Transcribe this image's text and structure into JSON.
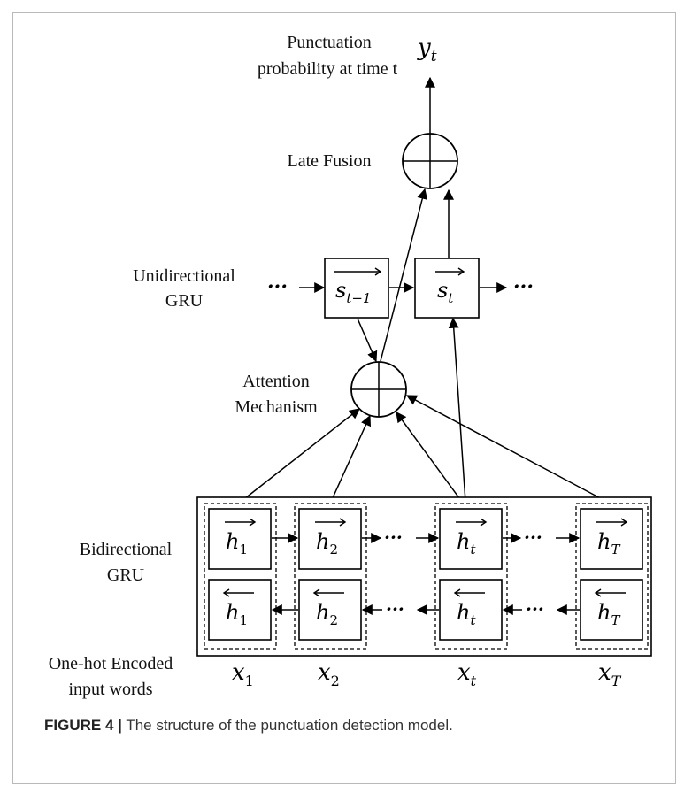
{
  "labels": {
    "output_title_line1": "Punctuation",
    "output_title_line2": "probability at time t",
    "late_fusion": "Late Fusion",
    "unidirectional_line1": "Unidirectional",
    "unidirectional_line2": "GRU",
    "attention_line1": "Attention",
    "attention_line2": "Mechanism",
    "bidirectional_line1": "Bidirectional",
    "bidirectional_line2": "GRU",
    "input_line1": "One-hot Encoded",
    "input_line2": "input words"
  },
  "math": {
    "y": "y",
    "y_sub": "t",
    "s_prev": "s",
    "s_prev_sub": "t−1",
    "s_cur": "s",
    "s_cur_sub": "t",
    "h": "h",
    "sub_1": "1",
    "sub_2": "2",
    "sub_t": "t",
    "sub_T": "T",
    "x": "x",
    "ellipsis": "···"
  },
  "caption": {
    "figure_number": "FIGURE 4 |",
    "text": "The structure of the punctuation detection model."
  }
}
